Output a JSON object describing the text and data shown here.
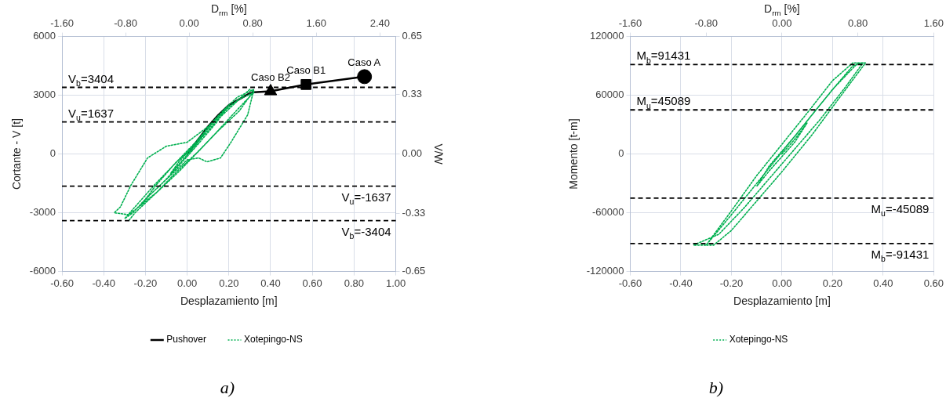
{
  "chart_data": [
    {
      "type": "line",
      "xlabel": "Desplazamiento [m]",
      "ylabel": "Cortante - V [t]",
      "y2label": "V/W",
      "x2label": "D$_{rm}$ [%]",
      "xlim": [
        -0.6,
        1.0
      ],
      "xticks": [
        {
          "value": -0.6,
          "label": "-0.60"
        },
        {
          "value": -0.4,
          "label": "-0.40"
        },
        {
          "value": -0.2,
          "label": "-0.20"
        },
        {
          "value": 0,
          "label": "0.00"
        },
        {
          "value": 0.2,
          "label": "0.20"
        },
        {
          "value": 0.4,
          "label": "0.40"
        },
        {
          "value": 0.6,
          "label": "0.60"
        },
        {
          "value": 0.8,
          "label": "0.80"
        },
        {
          "value": 1.0,
          "label": "1.00"
        }
      ],
      "ylim": [
        -6000,
        6000
      ],
      "yticks": [
        -6000,
        -3000,
        0,
        3000,
        6000
      ],
      "y2lim": [
        -0.65,
        0.65
      ],
      "y2ticks": [
        -0.65,
        -0.33,
        {
          "value": 0,
          "label": "0.00"
        },
        0.33,
        0.65
      ],
      "x2lim": [
        -1.6,
        2.6
      ],
      "x2ticks": [
        {
          "value": -1.6,
          "label": "-1.60"
        },
        {
          "value": -0.8,
          "label": "-0.80"
        },
        {
          "value": 0,
          "label": "0.00"
        },
        {
          "value": 0.8,
          "label": "0.80"
        },
        {
          "value": 1.6,
          "label": "1.60"
        },
        {
          "value": 2.4,
          "label": "2.40"
        }
      ],
      "grid": true,
      "legend": "bottom",
      "series": [
        {
          "name": "Xotepingo-NS",
          "color": "#00b050",
          "line_style": "dotted",
          "marker": "none",
          "x": [
            0,
            0.04,
            0.08,
            0.03,
            -0.03,
            -0.08,
            -0.04,
            0.02,
            0.1,
            0.16,
            0.2,
            0.14,
            0.06,
            -0.04,
            -0.12,
            -0.18,
            -0.22,
            -0.15,
            -0.06,
            0.04,
            0.12,
            0.2,
            0.26,
            0.3,
            0.32,
            0.27,
            0.2,
            0.14,
            0.06,
            -0.04,
            -0.14,
            -0.22,
            -0.28,
            -0.35,
            -0.32,
            -0.27,
            -0.19,
            -0.1,
            0,
            0.1,
            0.18,
            0.24,
            0.3,
            0.32,
            0.29,
            0.21,
            0.16,
            0.095,
            0.055,
            0,
            -0.1,
            -0.2,
            -0.26,
            -0.3,
            -0.25,
            -0.15,
            -0.05,
            0.05,
            0.15,
            0.25,
            0.31,
            0.25,
            0.15,
            0.05,
            -0.05,
            -0.15,
            -0.25,
            -0.28
          ],
          "values": [
            0,
            500,
            1000,
            300,
            -400,
            -1000,
            -400,
            300,
            1300,
            2000,
            2500,
            1600,
            600,
            -600,
            -1500,
            -2100,
            -2600,
            -1600,
            -500,
            600,
            1600,
            2400,
            2900,
            3300,
            3150,
            2600,
            1800,
            1100,
            200,
            -900,
            -1900,
            -2600,
            -3100,
            -3000,
            -2700,
            -1600,
            -200,
            400,
            600,
            1400,
            2300,
            2900,
            3200,
            3300,
            2000,
            600,
            -200,
            -400,
            -200,
            -300,
            -1300,
            -2300,
            -3000,
            -3300,
            -2700,
            -1500,
            -400,
            600,
            1800,
            2800,
            3100,
            2200,
            1200,
            100,
            -900,
            -2000,
            -3000,
            -3400
          ]
        },
        {
          "name": "Pushover",
          "color": "#000000",
          "line_style": "solid",
          "marker": "none",
          "x": [
            0,
            0.05,
            0.1,
            0.15,
            0.2,
            0.25,
            0.3,
            0.32,
            0.4,
            0.57,
            0.85
          ],
          "values": [
            0,
            700,
            1400,
            2000,
            2500,
            2800,
            3100,
            3150,
            3200,
            3550,
            3950
          ]
        },
        {
          "type": "scatter",
          "color": "#000000",
          "marker": "triangle",
          "x": [
            0.4
          ],
          "values": [
            3200
          ]
        },
        {
          "type": "scatter",
          "color": "#000000",
          "marker": "square",
          "x": [
            0.57
          ],
          "values": [
            3550
          ]
        },
        {
          "type": "scatter",
          "color": "#000000",
          "marker": "circle",
          "x": [
            0.85
          ],
          "values": [
            3950
          ]
        }
      ],
      "ref_lines": [
        {
          "axis": "y",
          "value": 3404,
          "label": "V$_{b}$=3404",
          "color": "#000000",
          "line_style": "dashed"
        },
        {
          "axis": "y",
          "value": 1637,
          "label": "V$_{u}$=1637",
          "color": "#000000",
          "line_style": "dashed"
        },
        {
          "axis": "y",
          "value": -1637,
          "label": "V$_{u}$=-1637",
          "color": "#000000",
          "line_style": "dashed"
        },
        {
          "axis": "y",
          "value": -3404,
          "label": "V$_{b}$=-3404",
          "color": "#000000",
          "line_style": "dashed"
        }
      ],
      "annotations": [
        {
          "text": "Caso B2",
          "x": 0.4,
          "y": 3200
        },
        {
          "text": "Caso B1",
          "x": 0.57,
          "y": 3550
        },
        {
          "text": "Caso A",
          "x": 0.85,
          "y": 3950
        },
        "a)"
      ]
    },
    {
      "type": "line",
      "xlabel": "Desplazamiento [m]",
      "ylabel": "Momento [t-m]",
      "x2label": "D$_{rm}$ [%]",
      "xlim": [
        -0.6,
        0.6
      ],
      "xticks": [
        {
          "value": -0.6,
          "label": "-0.60"
        },
        {
          "value": -0.4,
          "label": "-0.40"
        },
        {
          "value": -0.2,
          "label": "-0.20"
        },
        {
          "value": 0,
          "label": "0.00"
        },
        {
          "value": 0.2,
          "label": "0.20"
        },
        {
          "value": 0.4,
          "label": "0.40"
        },
        {
          "value": 0.6,
          "label": "0.60"
        }
      ],
      "ylim": [
        -120000,
        120000
      ],
      "yticks": [
        -120000,
        -60000,
        0,
        60000,
        120000
      ],
      "x2lim": [
        -1.6,
        1.6
      ],
      "x2ticks": [
        {
          "value": -1.6,
          "label": "-1.60"
        },
        {
          "value": -0.8,
          "label": "-0.80"
        },
        {
          "value": 0,
          "label": "0.00"
        },
        {
          "value": 0.8,
          "label": "0.80"
        },
        {
          "value": 1.6,
          "label": "1.60"
        }
      ],
      "grid": true,
      "legend": "bottom",
      "series": [
        {
          "name": "Xotepingo-NS",
          "color": "#00b050",
          "line_style": "dotted",
          "marker": "none",
          "x": [
            0,
            0.05,
            0.1,
            0.05,
            -0.05,
            -0.1,
            -0.05,
            0.05,
            0.15,
            0.22,
            0.28,
            0.32,
            0.25,
            0.15,
            0.05,
            -0.05,
            -0.15,
            -0.25,
            -0.35,
            -0.3,
            -0.2,
            -0.1,
            0,
            0.1,
            0.2,
            0.28,
            0.33,
            0.22,
            0.12,
            0,
            -0.1,
            -0.2,
            -0.27,
            -0.3,
            -0.2,
            -0.1,
            0,
            0.1,
            0.2,
            0.3
          ],
          "values": [
            0,
            15000,
            32000,
            12000,
            -17000,
            -33000,
            -12000,
            18000,
            50000,
            72000,
            90000,
            93000,
            68000,
            35000,
            5000,
            -25000,
            -55000,
            -82000,
            -93000,
            -93000,
            -58000,
            -22000,
            10000,
            42000,
            75000,
            93000,
            93000,
            55000,
            20000,
            -18000,
            -48000,
            -78000,
            -93000,
            -93000,
            -62000,
            -30000,
            2000,
            34000,
            66000,
            93000
          ]
        }
      ],
      "ref_lines": [
        {
          "axis": "y",
          "value": 91431,
          "label": "M$_{b}$=91431",
          "color": "#000000",
          "line_style": "dashed"
        },
        {
          "axis": "y",
          "value": 45089,
          "label": "M$_{u}$=45089",
          "color": "#000000",
          "line_style": "dashed"
        },
        {
          "axis": "y",
          "value": -45089,
          "label": "M$_{u}$=-45089",
          "color": "#000000",
          "line_style": "dashed"
        },
        {
          "axis": "y",
          "value": -91431,
          "label": "M$_{b}$=-91431",
          "color": "#000000",
          "line_style": "dashed"
        }
      ],
      "annotations": [
        "b)"
      ]
    }
  ]
}
